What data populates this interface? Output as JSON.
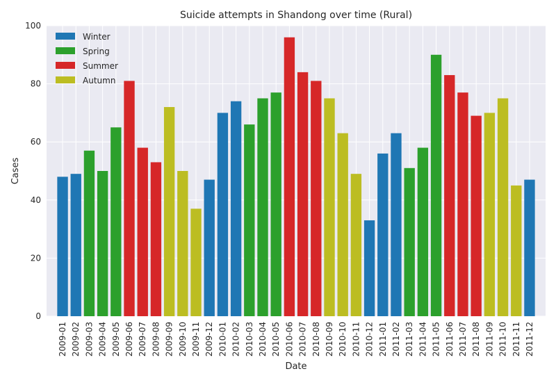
{
  "chart_data": {
    "type": "bar",
    "title": "Suicide attempts in Shandong over time (Rural)",
    "xlabel": "Date",
    "ylabel": "Cases",
    "ylim": [
      0,
      100
    ],
    "yticks": [
      0,
      20,
      40,
      60,
      80,
      100
    ],
    "grid": true,
    "legend_position": "top-left",
    "colors": {
      "Winter": "#1f77b4",
      "Spring": "#2ca02c",
      "Summer": "#d62728",
      "Autumn": "#bcbd22"
    },
    "legend": [
      "Winter",
      "Spring",
      "Summer",
      "Autumn"
    ],
    "categories": [
      "2009-01",
      "2009-02",
      "2009-03",
      "2009-04",
      "2009-05",
      "2009-06",
      "2009-07",
      "2009-08",
      "2009-09",
      "2009-10",
      "2009-11",
      "2009-12",
      "2010-01",
      "2010-02",
      "2010-03",
      "2010-04",
      "2010-05",
      "2010-06",
      "2010-07",
      "2010-08",
      "2010-09",
      "2010-10",
      "2010-11",
      "2010-12",
      "2011-01",
      "2011-02",
      "2011-03",
      "2011-04",
      "2011-05",
      "2011-06",
      "2011-07",
      "2011-08",
      "2011-09",
      "2011-10",
      "2011-11",
      "2011-12"
    ],
    "values": [
      48,
      49,
      57,
      50,
      65,
      81,
      58,
      53,
      72,
      50,
      37,
      47,
      70,
      74,
      66,
      75,
      77,
      96,
      84,
      81,
      75,
      63,
      49,
      33,
      56,
      63,
      51,
      58,
      90,
      83,
      77,
      69,
      70,
      75,
      45,
      47
    ],
    "seasons": [
      "Winter",
      "Winter",
      "Spring",
      "Spring",
      "Spring",
      "Summer",
      "Summer",
      "Summer",
      "Autumn",
      "Autumn",
      "Autumn",
      "Winter",
      "Winter",
      "Winter",
      "Spring",
      "Spring",
      "Spring",
      "Summer",
      "Summer",
      "Summer",
      "Autumn",
      "Autumn",
      "Autumn",
      "Winter",
      "Winter",
      "Winter",
      "Spring",
      "Spring",
      "Spring",
      "Summer",
      "Summer",
      "Summer",
      "Autumn",
      "Autumn",
      "Autumn",
      "Winter"
    ]
  }
}
